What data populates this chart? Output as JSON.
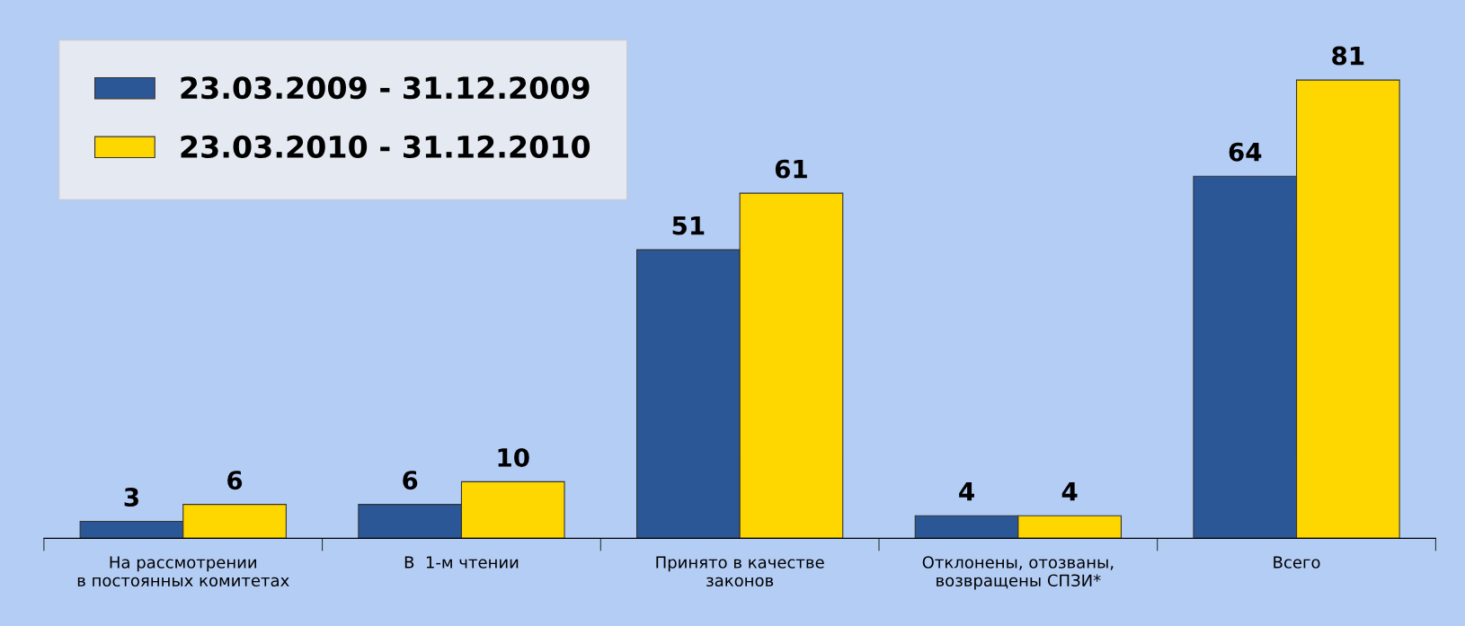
{
  "chart_data": {
    "type": "bar",
    "categories": [
      "На рассмотрении\nв постоянных комитетах",
      "В  1-м чтении",
      "Принято в качестве\nзаконов",
      "Отклонены, отозваны,\nвозвращены СПЗИ*",
      "Всего"
    ],
    "series": [
      {
        "name": "23.03.2009 - 31.12.2009",
        "color": "#2b5797",
        "values": [
          3,
          6,
          51,
          4,
          64
        ]
      },
      {
        "name": "23.03.2010 - 31.12.2010",
        "color": "#ffd700",
        "values": [
          6,
          10,
          61,
          4,
          81
        ]
      }
    ],
    "data_labels": true,
    "legend": "top left",
    "tick_labels": "x",
    "grid": false
  }
}
